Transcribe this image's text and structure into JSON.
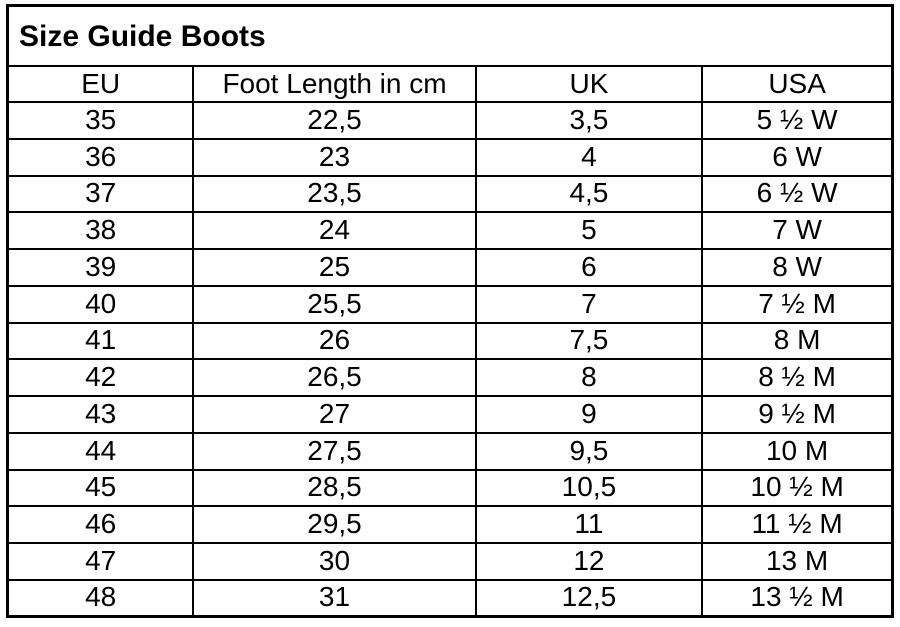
{
  "title": "Size Guide Boots",
  "colors": {
    "border": "#000000",
    "background": "#ffffff",
    "text": "#000000"
  },
  "table": {
    "headers": [
      "EU",
      "Foot Length in cm",
      "UK",
      "USA"
    ],
    "rows": [
      [
        "35",
        "22,5",
        "3,5",
        "5 ½ W"
      ],
      [
        "36",
        "23",
        "4",
        "6 W"
      ],
      [
        "37",
        "23,5",
        "4,5",
        "6 ½ W"
      ],
      [
        "38",
        "24",
        "5",
        "7 W"
      ],
      [
        "39",
        "25",
        "6",
        "8 W"
      ],
      [
        "40",
        "25,5",
        "7",
        "7 ½ M"
      ],
      [
        "41",
        "26",
        "7,5",
        "8 M"
      ],
      [
        "42",
        "26,5",
        "8",
        "8 ½ M"
      ],
      [
        "43",
        "27",
        "9",
        "9 ½ M"
      ],
      [
        "44",
        "27,5",
        "9,5",
        "10 M"
      ],
      [
        "45",
        "28,5",
        "10,5",
        "10 ½ M"
      ],
      [
        "46",
        "29,5",
        "11",
        "11 ½ M"
      ],
      [
        "47",
        "30",
        "12",
        "13 M"
      ],
      [
        "48",
        "31",
        "12,5",
        "13 ½ M"
      ]
    ]
  }
}
